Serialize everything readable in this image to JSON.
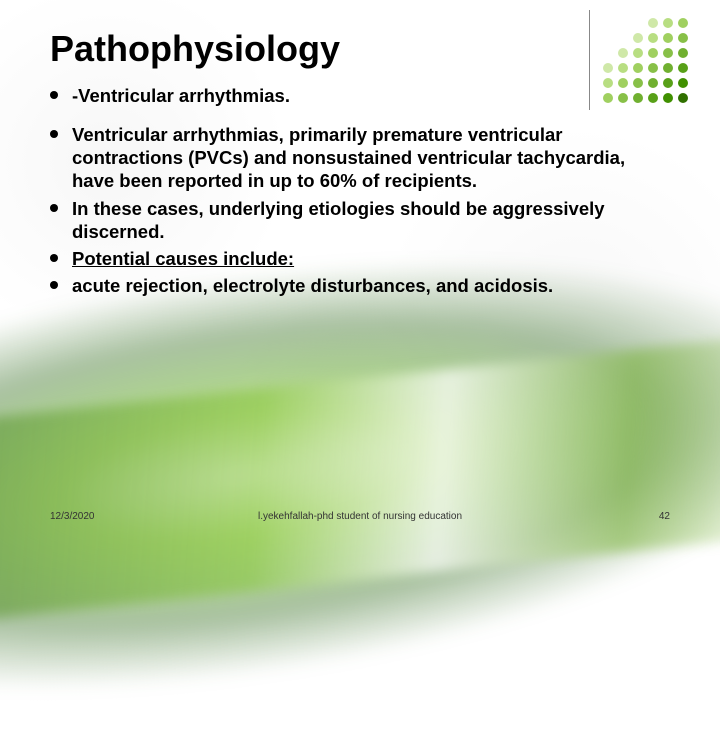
{
  "title": "Pathophysiology",
  "bullets": [
    {
      "text": "-Ventricular arrhythmias.",
      "underline": false
    },
    {
      "text": "Ventricular arrhythmias, primarily premature ventricular contractions (PVCs) and nonsustained ventricular tachycardia, have been reported in up to 60% of recipients.",
      "underline": false
    },
    {
      "text": "In these cases, underlying etiologies should be aggressively discerned.",
      "underline": false
    },
    {
      "text": " Potential causes include:",
      "underline": true
    },
    {
      "text": " acute rejection, electrolyte disturbances, and acidosis.",
      "underline": false
    }
  ],
  "footer": {
    "date": "12/3/2020",
    "center": "l.yekehfallah-phd student of nursing education",
    "page": "42"
  },
  "styling": {
    "title_fontsize": 36,
    "bullet_fontsize": 18.5,
    "footer_fontsize": 10,
    "text_color": "#000000",
    "background_color": "#ffffff",
    "swoosh_colors": [
      "#8cc83c",
      "#5aa028",
      "#286414"
    ],
    "dot_grid": {
      "rows": 6,
      "cols": 6,
      "size": 10,
      "gap": 3
    },
    "dot_colors": {
      "row0": [
        "",
        "",
        "",
        "#cfe8a8",
        "#b8de82",
        "#a0d060"
      ],
      "row1": [
        "",
        "",
        "#cfe8a8",
        "#b8de82",
        "#a0d060",
        "#88c048"
      ],
      "row2": [
        "",
        "#cfe8a8",
        "#b8de82",
        "#a0d060",
        "#88c048",
        "#70b030"
      ],
      "row3": [
        "#cfe8a8",
        "#b8de82",
        "#a0d060",
        "#88c048",
        "#70b030",
        "#58a018"
      ],
      "row4": [
        "#b8de82",
        "#a0d060",
        "#88c048",
        "#70b030",
        "#58a018",
        "#409000"
      ],
      "row5": [
        "#a0d060",
        "#88c048",
        "#70b030",
        "#58a018",
        "#409000",
        "#307000"
      ]
    }
  }
}
